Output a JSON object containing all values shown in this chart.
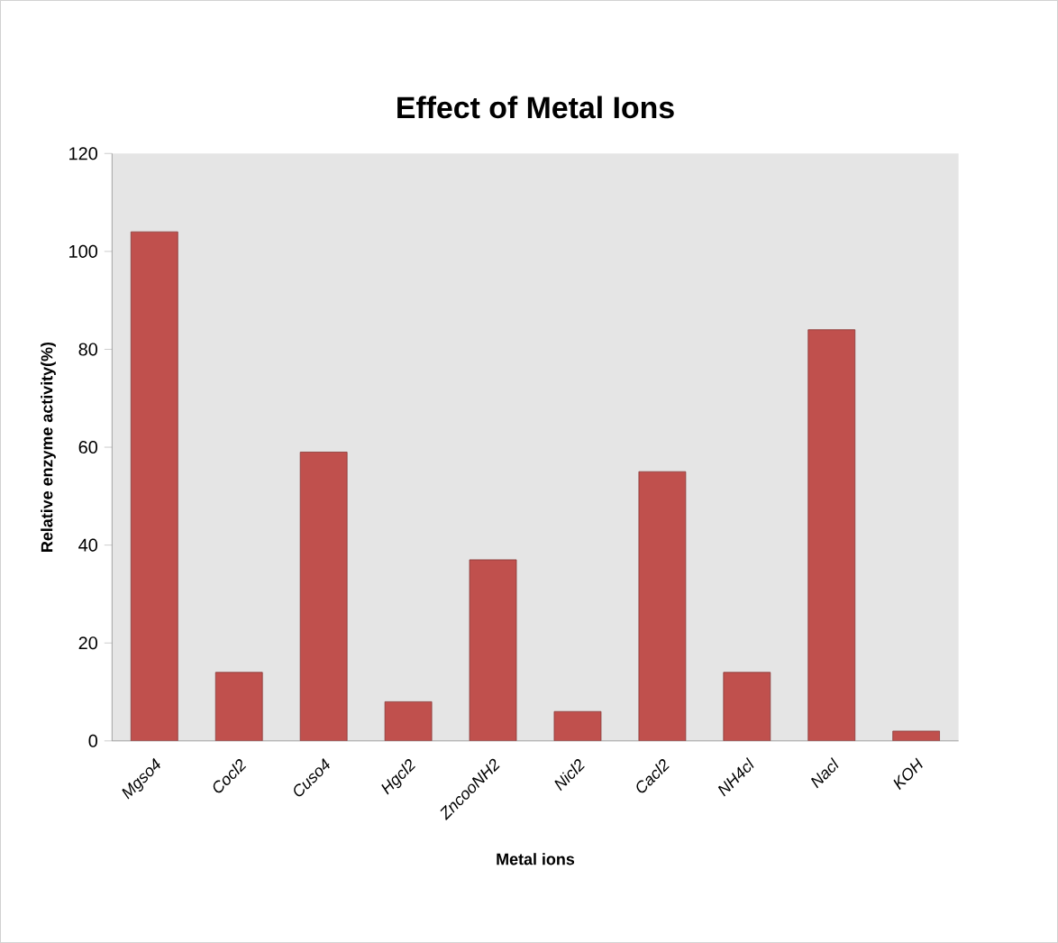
{
  "chart_data": {
    "type": "bar",
    "title": "Effect of Metal Ions",
    "xlabel": "Metal ions",
    "ylabel": "Relative enzyme activity(%)",
    "categories": [
      "Mgso4",
      "Cocl2",
      "Cuso4",
      "Hgcl2",
      "ZncooNH2",
      "Nicl2",
      "Cacl2",
      "NH4cl",
      "Nacl",
      "KOH"
    ],
    "values": [
      104,
      14,
      59,
      8,
      37,
      6,
      55,
      14,
      84,
      2
    ],
    "color": "#c0504d",
    "ylim": [
      0,
      120
    ],
    "yticks": [
      0,
      20,
      40,
      60,
      80,
      100,
      120
    ]
  }
}
